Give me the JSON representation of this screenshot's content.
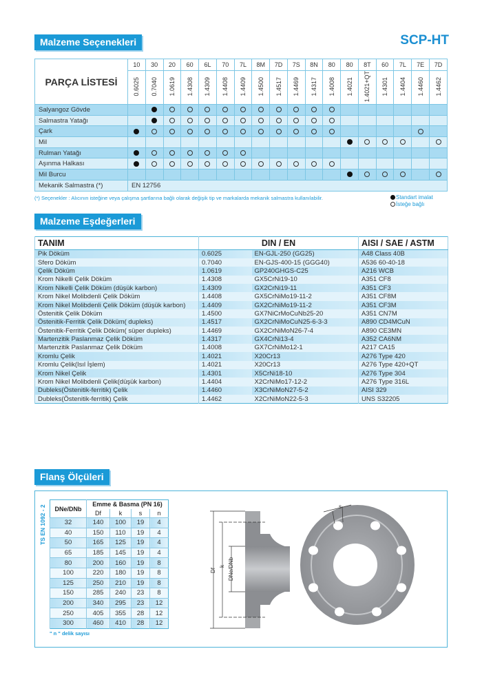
{
  "header": {
    "section1_title": "Malzeme Seçenekleri",
    "brand": "SCP-HT"
  },
  "materials_table": {
    "corner_label": "PARÇA LİSTESİ",
    "codes": [
      "10",
      "30",
      "20",
      "60",
      "6L",
      "70",
      "7L",
      "8M",
      "7D",
      "7S",
      "8N",
      "80",
      "80",
      "8T",
      "60",
      "7L",
      "7E",
      "7D"
    ],
    "numbers": [
      "0.6025",
      "0.7040",
      "1.0619",
      "1.4308",
      "1.4309",
      "1.4408",
      "1.4409",
      "1.4500",
      "1.4517",
      "1.4469",
      "1.4317",
      "1.4008",
      "1.4021",
      "1.4021+QT",
      "1.4301",
      "1.4404",
      "1.4460",
      "1.4462"
    ],
    "rows": [
      {
        "part": "Salyangoz Gövde",
        "marks": ".FOOOOOOOOOO......"
      },
      {
        "part": "Salmastra Yatağı",
        "marks": ".FOOOOOOOOOO......"
      },
      {
        "part": "Çark",
        "marks": "FOOOOOOOOOOO....O."
      },
      {
        "part": "Mil",
        "marks": "............FOOO.O"
      },
      {
        "part": "Rulman Yatağı",
        "marks": "FOOOOOO..........."
      },
      {
        "part": "Aşınma Halkası",
        "marks": "FOOOOOOOOOOO......"
      },
      {
        "part": "Mil Burcu",
        "marks": "............FOOO.O"
      }
    ],
    "last_row": {
      "part": "Mekanik Salmastra (*)",
      "value": "EN 12756"
    },
    "footnote": "(*) Seçenekler : Alıcının isteğine veya çalışma şartlarına bağlı olarak değişik tip ve markalarda mekanik salmastra kullanılabilir.",
    "legend": {
      "filled": "Standart imalat",
      "open": "İsteğe bağlı"
    }
  },
  "equivalents": {
    "title": "Malzeme Eşdeğerleri",
    "headers": {
      "tanim": "TANIM",
      "din": "DIN / EN",
      "aisi": "AISI / SAE / ASTM"
    },
    "rows": [
      [
        "Pik Döküm",
        "0.6025",
        "EN-GJL-250 (GG25)",
        "A48 Class 40B"
      ],
      [
        "Sfero Döküm",
        "0.7040",
        "EN-GJS-400-15 (GGG40)",
        "A536 60-40-18"
      ],
      [
        "Çelik Döküm",
        "1.0619",
        "GP240GHGS-C25",
        "A216 WCB"
      ],
      [
        "Krom Nikelli Çelik Döküm",
        "1.4308",
        "GX5CrNi19-10",
        "A351 CF8"
      ],
      [
        "Krom Nikelli Çelik Döküm (düşük karbon)",
        "1.4309",
        "GX2CrNi19-11",
        "A351 CF3"
      ],
      [
        "Krom Nikel Molibdenli Çelik Döküm",
        "1.4408",
        "GX5CrNiMo19-11-2",
        "A351 CF8M"
      ],
      [
        "Krom Nikel Molibdenli Çelik Döküm (düşük karbon)",
        "1.4409",
        "GX2CrNiMo19-11-2",
        "A351 CF3M"
      ],
      [
        "Östenitik Çelik Döküm",
        "1.4500",
        "GX7NiCrMoCuNb25-20",
        "A351 CN7M"
      ],
      [
        "Östenitik-Ferritik Çelik Döküm( dupleks)",
        "1.4517",
        "GX2CrNiMoCuN25-6-3-3",
        "A890 CD4MCuN"
      ],
      [
        "Östenitik-Ferritik Çelik Döküm( süper dupleks)",
        "1.4469",
        "GX2CrNiMoN26-7-4",
        "A890 CE3MN"
      ],
      [
        "Martenzitik Paslanmaz Çelik Döküm",
        "1.4317",
        "GX4CrNi13-4",
        "A352 CA6NM"
      ],
      [
        "Martenzitik Paslanmaz Çelik Döküm",
        "1.4008",
        "GX7CrNiMo12-1",
        "A217  CA15"
      ],
      [
        "Kromlu Çelik",
        "1.4021",
        "X20Cr13",
        "A276 Type 420"
      ],
      [
        "Kromlu Çelik(Isıl İşlem)",
        "1.4021",
        "X20Cr13",
        "A276 Type 420+QT"
      ],
      [
        "Krom Nikel Çelik",
        "1.4301",
        "X5CrNi18-10",
        "A276 Type 304"
      ],
      [
        "Krom Nikel Molibdenli Çelik(düşük karbon)",
        "1.4404",
        "X2CrNiMo17-12-2",
        "A276 Type 316L"
      ],
      [
        "Dubleks(Östenitik-ferritik) Çelik",
        "1.4460",
        "X3CrNiMoN27-5-2",
        "AISI 329"
      ],
      [
        "Dubleks(Östenitik-ferritik) Çelik",
        "1.4462",
        "X2CrNiMoN22-5-3",
        "UNS S32205"
      ]
    ]
  },
  "flange": {
    "title": "Flanş Ölçüleri",
    "standard": "TS EN 1092 - 2",
    "headers": {
      "dn": "DNe/DNb",
      "group": "Emme & Basma (PN 16)",
      "df": "Df",
      "k": "k",
      "s": "s",
      "n": "n"
    },
    "rows": [
      [
        "32",
        "140",
        "100",
        "19",
        "4"
      ],
      [
        "40",
        "150",
        "110",
        "19",
        "4"
      ],
      [
        "50",
        "165",
        "125",
        "19",
        "4"
      ],
      [
        "65",
        "185",
        "145",
        "19",
        "4"
      ],
      [
        "80",
        "200",
        "160",
        "19",
        "8"
      ],
      [
        "100",
        "220",
        "180",
        "19",
        "8"
      ],
      [
        "125",
        "250",
        "210",
        "19",
        "8"
      ],
      [
        "150",
        "285",
        "240",
        "23",
        "8"
      ],
      [
        "200",
        "340",
        "295",
        "23",
        "12"
      ],
      [
        "250",
        "405",
        "355",
        "28",
        "12"
      ],
      [
        "300",
        "460",
        "410",
        "28",
        "12"
      ]
    ],
    "footnote": "\" n \" delik sayısı",
    "drawing_labels": {
      "df": "Df",
      "k": "k",
      "dn": "DNe/DNb",
      "s": "s"
    }
  },
  "colors": {
    "accent": "#1b9ad7",
    "row_dark": "#a9dbf2",
    "row_light": "#d9eff9",
    "border": "#4db3d9"
  }
}
